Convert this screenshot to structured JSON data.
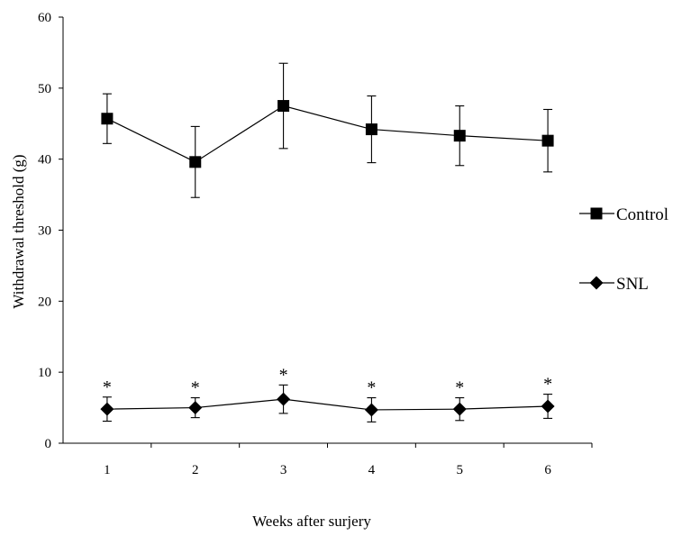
{
  "chart_data": {
    "type": "line",
    "title": "",
    "xlabel": "Weeks after surjery",
    "ylabel": "Withdrawal threshold (g)",
    "categories": [
      "1",
      "2",
      "3",
      "4",
      "5",
      "6"
    ],
    "ylim": [
      0,
      60
    ],
    "yticks": [
      "0",
      "10",
      "20",
      "30",
      "40",
      "50",
      "60"
    ],
    "grid": false,
    "legend_position": "right",
    "series": [
      {
        "name": "Control",
        "marker": "square",
        "color": "#000000",
        "values": [
          45.7,
          39.6,
          47.5,
          44.2,
          43.3,
          42.6
        ],
        "error": [
          3.5,
          5.0,
          6.0,
          4.7,
          4.2,
          4.4
        ]
      },
      {
        "name": "SNL",
        "marker": "diamond",
        "color": "#000000",
        "values": [
          4.8,
          5.0,
          6.2,
          4.7,
          4.8,
          5.2
        ],
        "error": [
          1.7,
          1.4,
          2.0,
          1.7,
          1.6,
          1.7
        ],
        "annotation": "*"
      }
    ]
  }
}
